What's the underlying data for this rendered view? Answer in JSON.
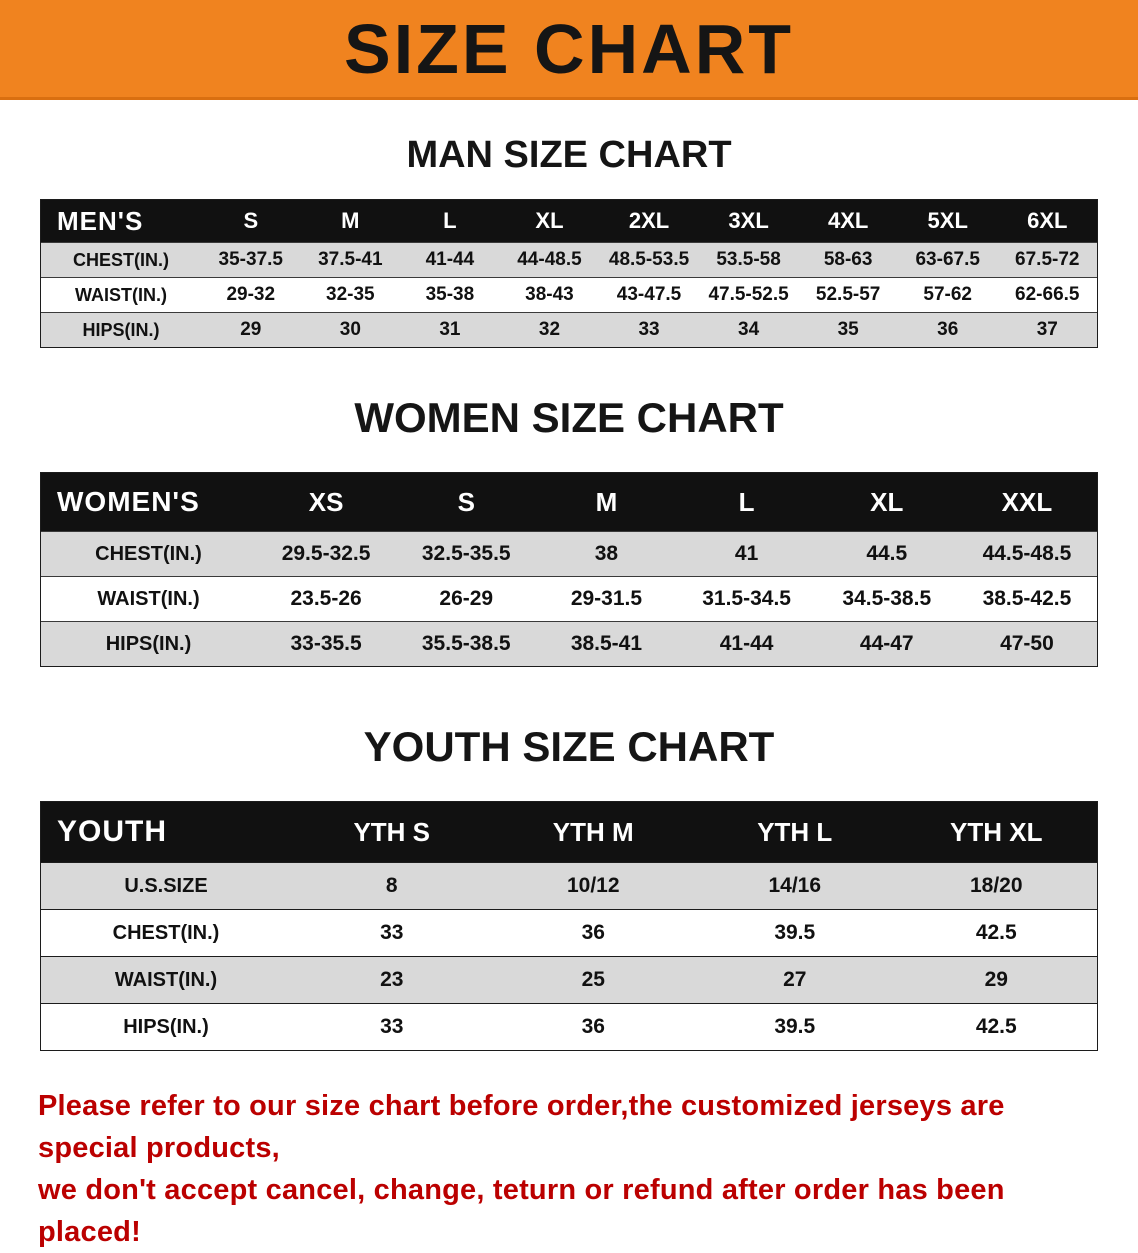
{
  "banner": {
    "title": "SIZE CHART"
  },
  "colors": {
    "banner_orange": "#F0831F",
    "header_black": "#111111",
    "stripe_gray": "#D9D9D9",
    "notice_red": "#BB0000",
    "text_black": "#111111"
  },
  "sections": [
    {
      "id": "men",
      "title": "MAN SIZE CHART",
      "table": {
        "corner": "MEN'S",
        "columns": [
          "S",
          "M",
          "L",
          "XL",
          "2XL",
          "3XL",
          "4XL",
          "5XL",
          "6XL"
        ],
        "rows": [
          {
            "label": "CHEST(IN.)",
            "values": [
              "35-37.5",
              "37.5-41",
              "41-44",
              "44-48.5",
              "48.5-53.5",
              "53.5-58",
              "58-63",
              "63-67.5",
              "67.5-72"
            ]
          },
          {
            "label": "WAIST(IN.)",
            "values": [
              "29-32",
              "32-35",
              "35-38",
              "38-43",
              "43-47.5",
              "47.5-52.5",
              "52.5-57",
              "57-62",
              "62-66.5"
            ]
          },
          {
            "label": "HIPS(IN.)",
            "values": [
              "29",
              "30",
              "31",
              "32",
              "33",
              "34",
              "35",
              "36",
              "37"
            ]
          }
        ]
      }
    },
    {
      "id": "women",
      "title": "WOMEN SIZE CHART",
      "table": {
        "corner": "WOMEN'S",
        "columns": [
          "XS",
          "S",
          "M",
          "L",
          "XL",
          "XXL"
        ],
        "rows": [
          {
            "label": "CHEST(IN.)",
            "values": [
              "29.5-32.5",
              "32.5-35.5",
              "38",
              "41",
              "44.5",
              "44.5-48.5"
            ]
          },
          {
            "label": "WAIST(IN.)",
            "values": [
              "23.5-26",
              "26-29",
              "29-31.5",
              "31.5-34.5",
              "34.5-38.5",
              "38.5-42.5"
            ]
          },
          {
            "label": "HIPS(IN.)",
            "values": [
              "33-35.5",
              "35.5-38.5",
              "38.5-41",
              "41-44",
              "44-47",
              "47-50"
            ]
          }
        ]
      }
    },
    {
      "id": "youth",
      "title": "YOUTH SIZE CHART",
      "table": {
        "corner": "YOUTH",
        "columns": [
          "YTH S",
          "YTH M",
          "YTH L",
          "YTH XL"
        ],
        "rows": [
          {
            "label": "U.S.SIZE",
            "values": [
              "8",
              "10/12",
              "14/16",
              "18/20"
            ]
          },
          {
            "label": "CHEST(IN.)",
            "values": [
              "33",
              "36",
              "39.5",
              "42.5"
            ]
          },
          {
            "label": "WAIST(IN.)",
            "values": [
              "23",
              "25",
              "27",
              "29"
            ]
          },
          {
            "label": "HIPS(IN.)",
            "values": [
              "33",
              "36",
              "39.5",
              "42.5"
            ]
          }
        ]
      }
    }
  ],
  "footer": {
    "line1": "Please refer to our size chart before order,the customized jerseys are special products,",
    "line2": "we don't accept cancel, change, teturn or refund after order has been placed!"
  }
}
